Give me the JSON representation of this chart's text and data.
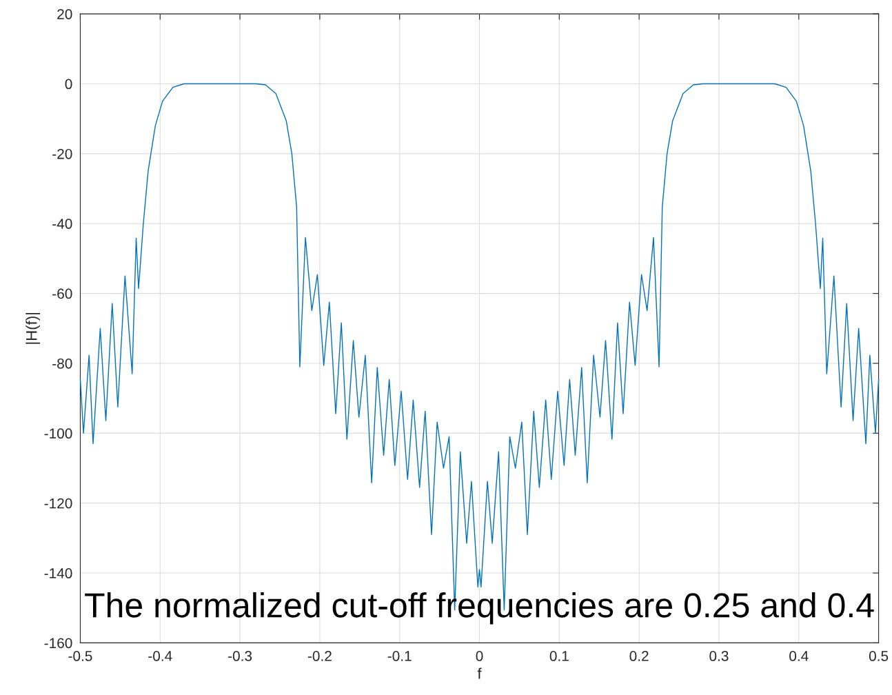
{
  "chart_data": {
    "type": "line",
    "xlabel": "f",
    "ylabel": "|H(f)|",
    "annotations": [
      "The normalized cut-off frequencies are 0.25 and 0.4"
    ],
    "xlim": [
      -0.5,
      0.5
    ],
    "xticks": [
      -0.5,
      -0.4,
      -0.3,
      -0.2,
      -0.1,
      0,
      0.1,
      0.2,
      0.3,
      0.4,
      0.5
    ],
    "ylim": [
      -160,
      20
    ],
    "yticks": [
      -160,
      -140,
      -120,
      -100,
      -80,
      -60,
      -40,
      -20,
      0,
      20
    ],
    "grid": true,
    "marker": "none",
    "line_style": "solid",
    "series": [
      {
        "color": "#0072bd",
        "x": [
          -0.5,
          -0.496,
          -0.489,
          -0.484,
          -0.475,
          -0.468,
          -0.46,
          -0.453,
          -0.444,
          -0.435,
          -0.43,
          -0.427,
          -0.421,
          -0.415,
          -0.406,
          -0.397,
          -0.384,
          -0.37,
          -0.28,
          -0.268,
          -0.255,
          -0.242,
          -0.235,
          -0.229,
          -0.225,
          -0.218,
          -0.21,
          -0.203,
          -0.195,
          -0.188,
          -0.18,
          -0.173,
          -0.166,
          -0.158,
          -0.151,
          -0.143,
          -0.135,
          -0.128,
          -0.12,
          -0.113,
          -0.106,
          -0.098,
          -0.09,
          -0.083,
          -0.075,
          -0.068,
          -0.06,
          -0.053,
          -0.045,
          -0.038,
          -0.031,
          -0.024,
          -0.016,
          -0.01,
          -0.002,
          0,
          0.002,
          0.01,
          0.016,
          0.024,
          0.031,
          0.038,
          0.045,
          0.053,
          0.06,
          0.068,
          0.075,
          0.083,
          0.09,
          0.098,
          0.106,
          0.113,
          0.12,
          0.128,
          0.135,
          0.143,
          0.151,
          0.158,
          0.166,
          0.173,
          0.18,
          0.188,
          0.195,
          0.203,
          0.21,
          0.218,
          0.225,
          0.229,
          0.235,
          0.242,
          0.255,
          0.268,
          0.28,
          0.37,
          0.384,
          0.397,
          0.406,
          0.415,
          0.421,
          0.427,
          0.43,
          0.435,
          0.444,
          0.453,
          0.46,
          0.468,
          0.475,
          0.484,
          0.489,
          0.496,
          0.5
        ],
        "values": [
          -84.6,
          -100,
          -77.7,
          -103,
          -70,
          -96.4,
          -62.9,
          -92.5,
          -55,
          -83,
          -44.2,
          -58.6,
          -40,
          -25,
          -12,
          -5,
          -1,
          0,
          0,
          -0.3,
          -2.8,
          -10.6,
          -20,
          -35.3,
          -81,
          -44,
          -64.9,
          -54.6,
          -80.6,
          -62.5,
          -94.4,
          -68.4,
          -101.7,
          -73.5,
          -95.4,
          -77.7,
          -114.2,
          -81.2,
          -106.3,
          -84.6,
          -109.2,
          -88,
          -113.2,
          -90.5,
          -115.5,
          -93.7,
          -129,
          -96.8,
          -110,
          -101,
          -150.6,
          -105.3,
          -131.5,
          -113.8,
          -144,
          -139,
          -144,
          -113.8,
          -131.5,
          -105.3,
          -150.6,
          -101,
          -110,
          -96.8,
          -129,
          -93.7,
          -115.5,
          -90.5,
          -113.2,
          -88,
          -109.2,
          -84.6,
          -106.3,
          -81.2,
          -114.2,
          -77.7,
          -95.4,
          -73.5,
          -101.7,
          -68.4,
          -94.4,
          -62.5,
          -80.6,
          -54.6,
          -64.9,
          -44,
          -81,
          -35.3,
          -20,
          -10.6,
          -2.8,
          -0.3,
          0,
          0,
          -1,
          -5,
          -12,
          -25,
          -40,
          -58.6,
          -44.2,
          -83,
          -55,
          -92.5,
          -62.9,
          -96.4,
          -70,
          -103,
          -77.7,
          -100,
          -84.6
        ]
      }
    ]
  }
}
